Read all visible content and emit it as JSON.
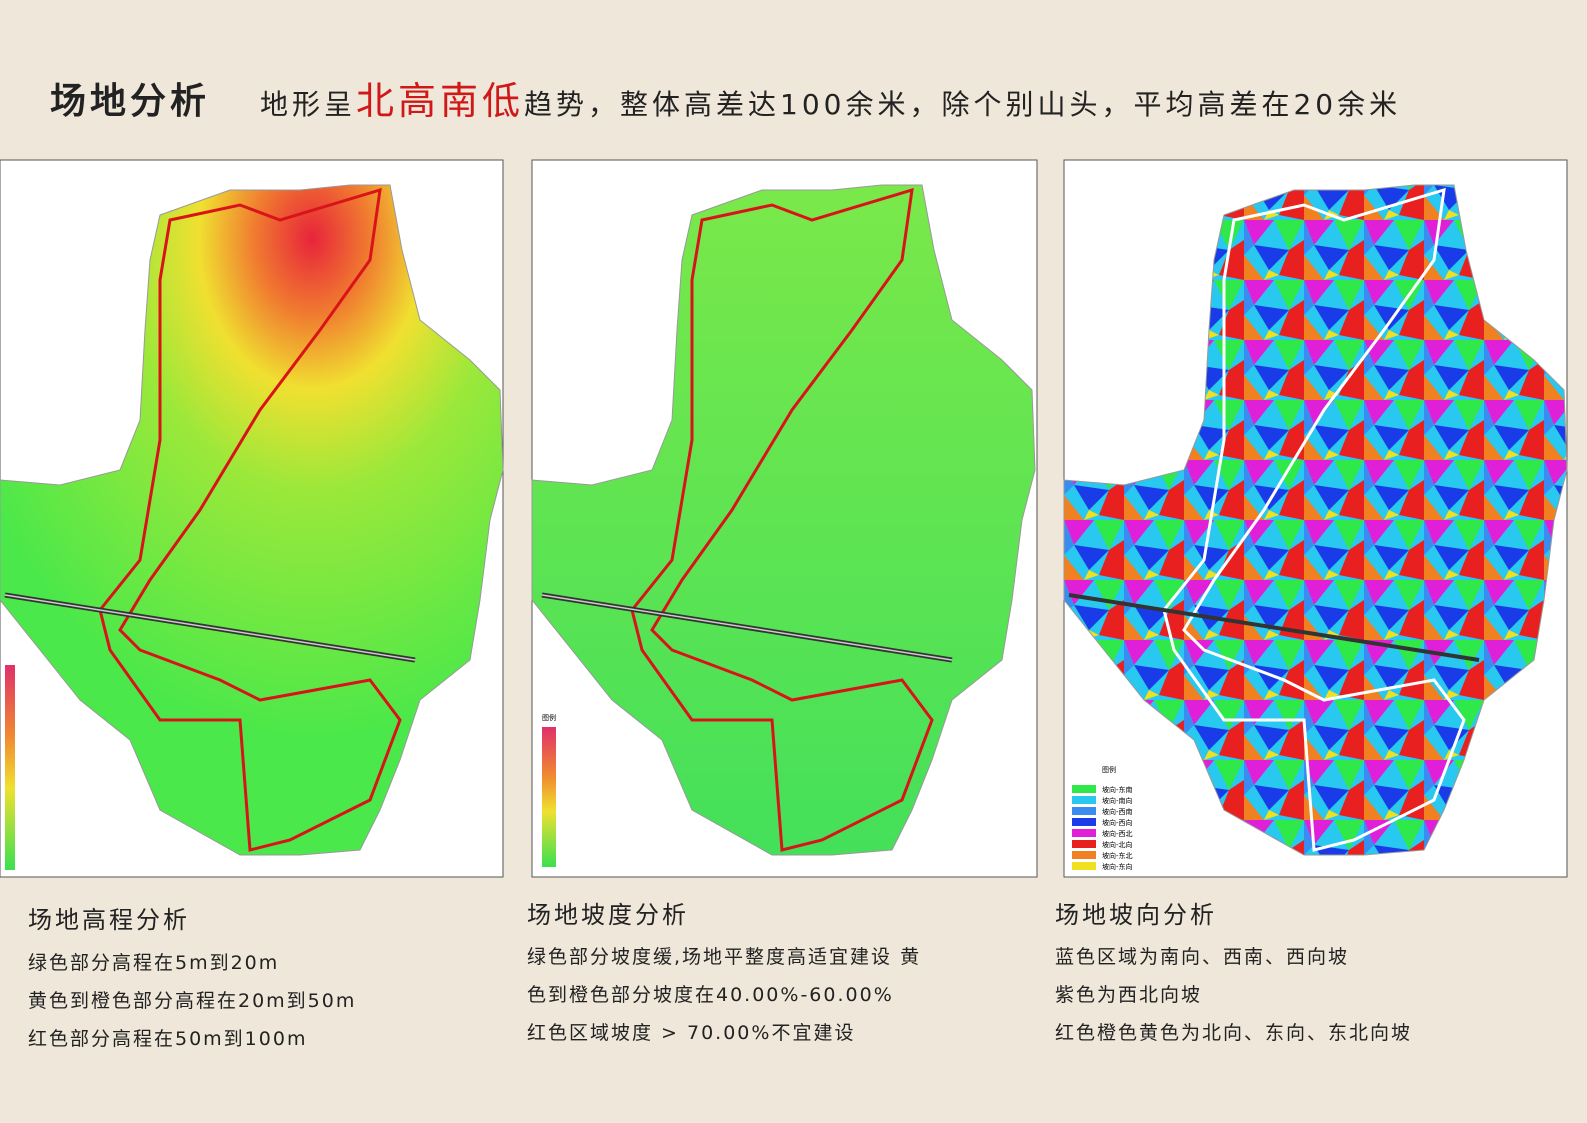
{
  "header": {
    "title": "场地分析",
    "subtitle_before": "地形呈",
    "subtitle_highlight": "北高南低",
    "subtitle_after": "趋势，整体高差达100余米，除个别山头，平均高差在20余米"
  },
  "panels": [
    {
      "caption_title": "场地高程分析",
      "caption_lines": [
        "绿色部分高程在5m到20m",
        "黄色到橙色部分高程在20m到50m",
        "红色部分高程在50m到100m"
      ]
    },
    {
      "legend_title": "图例",
      "caption_title": "场地坡度分析",
      "caption_lines": [
        "绿色部分坡度缓,场地平整度高适宜建设 黄",
        "色到橙色部分坡度在40.00%-60.00%",
        "红色区域坡度 > 70.00%不宜建设"
      ]
    },
    {
      "legend_title": "图例",
      "legend": [
        {
          "label": "坡向-东南",
          "color": "#2fe84a"
        },
        {
          "label": "坡向-南向",
          "color": "#28c8f0"
        },
        {
          "label": "坡向-西南",
          "color": "#3a8cf0"
        },
        {
          "label": "坡向-西向",
          "color": "#1a3ce8"
        },
        {
          "label": "坡向-西北",
          "color": "#e020d8"
        },
        {
          "label": "坡向-北向",
          "color": "#e82020"
        },
        {
          "label": "坡向-东北",
          "color": "#f08020"
        },
        {
          "label": "坡向-东向",
          "color": "#f0e020"
        }
      ],
      "caption_title": "场地坡向分析",
      "caption_lines": [
        "蓝色区域为南向、西南、西向坡",
        "紫色为西北向坡",
        "红色橙色黄色为北向、东向、东北向坡"
      ]
    }
  ]
}
